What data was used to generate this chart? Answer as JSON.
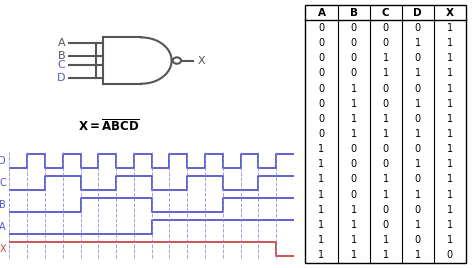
{
  "truth_table": {
    "headers": [
      "A",
      "B",
      "C",
      "D",
      "X"
    ],
    "rows": [
      [
        0,
        0,
        0,
        0,
        1
      ],
      [
        0,
        0,
        0,
        1,
        1
      ],
      [
        0,
        0,
        1,
        0,
        1
      ],
      [
        0,
        0,
        1,
        1,
        1
      ],
      [
        0,
        1,
        0,
        0,
        1
      ],
      [
        0,
        1,
        0,
        1,
        1
      ],
      [
        0,
        1,
        1,
        0,
        1
      ],
      [
        0,
        1,
        1,
        1,
        1
      ],
      [
        1,
        0,
        0,
        0,
        1
      ],
      [
        1,
        0,
        0,
        1,
        1
      ],
      [
        1,
        0,
        1,
        0,
        1
      ],
      [
        1,
        0,
        1,
        1,
        1
      ],
      [
        1,
        1,
        0,
        0,
        1
      ],
      [
        1,
        1,
        0,
        1,
        1
      ],
      [
        1,
        1,
        1,
        0,
        1
      ],
      [
        1,
        1,
        1,
        1,
        0
      ]
    ]
  },
  "signal_color": "#5555cc",
  "output_color": "#cc4444",
  "dashed_color": "#8888cc",
  "bg_color": "#ffffff",
  "label_color_abcd": "#5555cc",
  "label_color_x": "#cc4444",
  "gate_color": "#555555",
  "formula_color": "#000000",
  "timing_n": 16,
  "signal_A": [
    0,
    0,
    0,
    0,
    0,
    0,
    0,
    0,
    1,
    1,
    1,
    1,
    1,
    1,
    1,
    1
  ],
  "signal_B": [
    0,
    0,
    0,
    0,
    1,
    1,
    1,
    1,
    0,
    0,
    0,
    0,
    1,
    1,
    1,
    1
  ],
  "signal_C": [
    0,
    0,
    1,
    1,
    0,
    0,
    1,
    1,
    0,
    0,
    1,
    1,
    0,
    0,
    1,
    1
  ],
  "signal_D": [
    0,
    1,
    0,
    1,
    0,
    1,
    0,
    1,
    0,
    1,
    0,
    1,
    0,
    1,
    0,
    1
  ],
  "signal_X": [
    1,
    1,
    1,
    1,
    1,
    1,
    1,
    1,
    1,
    1,
    1,
    1,
    1,
    1,
    1,
    0
  ]
}
